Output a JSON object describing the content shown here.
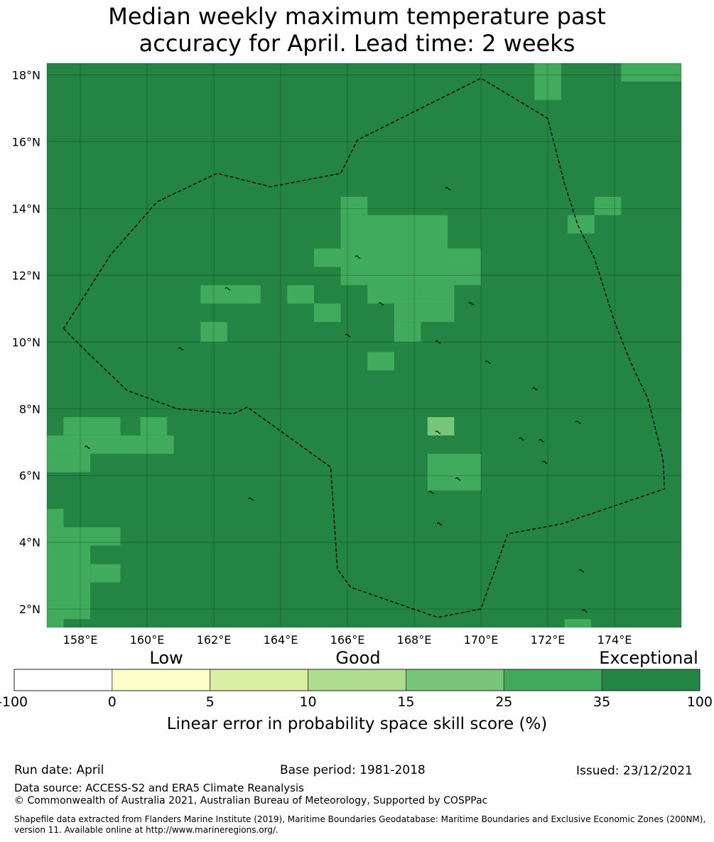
{
  "title_line1": "Median weekly maximum temperature past",
  "title_line2": "accuracy for April. Lead time: 2 weeks",
  "map": {
    "lat_labels": [
      "18°N",
      "16°N",
      "14°N",
      "12°N",
      "10°N",
      "8°N",
      "6°N",
      "4°N",
      "2°N"
    ],
    "lon_labels": [
      "158°E",
      "160°E",
      "162°E",
      "164°E",
      "166°E",
      "168°E",
      "170°E",
      "172°E",
      "174°E"
    ],
    "lat_values": [
      18,
      16,
      14,
      12,
      10,
      8,
      6,
      4,
      2
    ],
    "lon_values": [
      158,
      160,
      162,
      164,
      166,
      168,
      170,
      172,
      174
    ],
    "lon_range": [
      157,
      176
    ],
    "lat_range": [
      1.45,
      18.35
    ],
    "grid_lines": true,
    "colors": {
      "exceptional": "#238443",
      "band_25_35": "#41ab5d",
      "band_15_25": "#78c679",
      "border": "#000000"
    },
    "skill_25_35_cells": [
      {
        "lon": [
          171.6,
          172.4
        ],
        "lat": [
          17.25,
          18.35
        ]
      },
      {
        "lon": [
          174.2,
          176.0
        ],
        "lat": [
          17.8,
          18.35
        ]
      },
      {
        "lon": [
          165.8,
          166.6
        ],
        "lat": [
          13.8,
          14.35
        ]
      },
      {
        "lon": [
          165.8,
          169.0
        ],
        "lat": [
          11.7,
          13.8
        ]
      },
      {
        "lon": [
          165.0,
          165.8
        ],
        "lat": [
          12.25,
          12.8
        ]
      },
      {
        "lon": [
          169.0,
          170.0
        ],
        "lat": [
          12.25,
          12.8
        ]
      },
      {
        "lon": [
          169.0,
          170.0
        ],
        "lat": [
          11.7,
          12.25
        ]
      },
      {
        "lon": [
          166.6,
          168.2
        ],
        "lat": [
          11.15,
          11.7
        ]
      },
      {
        "lon": [
          168.2,
          169.2
        ],
        "lat": [
          11.15,
          11.7
        ]
      },
      {
        "lon": [
          167.4,
          169.2
        ],
        "lat": [
          10.6,
          11.15
        ]
      },
      {
        "lon": [
          167.4,
          168.2
        ],
        "lat": [
          10.0,
          10.6
        ]
      },
      {
        "lon": [
          173.4,
          174.2
        ],
        "lat": [
          13.8,
          14.35
        ]
      },
      {
        "lon": [
          172.6,
          173.4
        ],
        "lat": [
          13.25,
          13.8
        ]
      },
      {
        "lon": [
          161.6,
          163.4
        ],
        "lat": [
          11.15,
          11.7
        ]
      },
      {
        "lon": [
          164.2,
          165.0
        ],
        "lat": [
          11.15,
          11.7
        ]
      },
      {
        "lon": [
          165.0,
          165.8
        ],
        "lat": [
          10.6,
          11.15
        ]
      },
      {
        "lon": [
          161.6,
          162.4
        ],
        "lat": [
          10.0,
          10.6
        ]
      },
      {
        "lon": [
          166.6,
          167.4
        ],
        "lat": [
          9.15,
          9.7
        ]
      },
      {
        "lon": [
          157.5,
          159.2
        ],
        "lat": [
          7.2,
          7.75
        ]
      },
      {
        "lon": [
          157.0,
          160.8
        ],
        "lat": [
          6.65,
          7.2
        ]
      },
      {
        "lon": [
          157.0,
          158.3
        ],
        "lat": [
          6.1,
          6.65
        ]
      },
      {
        "lon": [
          159.8,
          160.6
        ],
        "lat": [
          7.2,
          7.75
        ]
      },
      {
        "lon": [
          168.4,
          170.0
        ],
        "lat": [
          5.55,
          6.65
        ]
      },
      {
        "lon": [
          157.0,
          157.5
        ],
        "lat": [
          4.45,
          5.0
        ]
      },
      {
        "lon": [
          157.0,
          159.2
        ],
        "lat": [
          3.9,
          4.45
        ]
      },
      {
        "lon": [
          157.0,
          158.3
        ],
        "lat": [
          2.25,
          3.9
        ]
      },
      {
        "lon": [
          158.3,
          159.2
        ],
        "lat": [
          2.8,
          3.35
        ]
      },
      {
        "lon": [
          157.0,
          158.3
        ],
        "lat": [
          1.7,
          2.25
        ]
      },
      {
        "lon": [
          157.0,
          157.5
        ],
        "lat": [
          1.45,
          1.7
        ]
      },
      {
        "lon": [
          172.5,
          173.3
        ],
        "lat": [
          1.45,
          1.7
        ]
      }
    ],
    "skill_15_25_cells": [
      {
        "lon": [
          168.4,
          169.2
        ],
        "lat": [
          7.2,
          7.75
        ]
      }
    ],
    "eez_boundary": [
      [
        157.5,
        10.4
      ],
      [
        158.2,
        9.7
      ],
      [
        159.4,
        8.55
      ],
      [
        160.9,
        8.0
      ],
      [
        162.6,
        7.85
      ],
      [
        163.0,
        8.05
      ],
      [
        165.5,
        6.25
      ],
      [
        165.7,
        3.2
      ],
      [
        166.1,
        2.65
      ],
      [
        168.7,
        1.75
      ],
      [
        170.0,
        2.0
      ],
      [
        170.8,
        4.25
      ],
      [
        172.4,
        4.55
      ],
      [
        175.5,
        5.6
      ],
      [
        175.45,
        6.5
      ],
      [
        175.0,
        8.3
      ],
      [
        174.5,
        9.35
      ],
      [
        174.0,
        10.6
      ],
      [
        173.4,
        12.5
      ],
      [
        172.9,
        13.5
      ],
      [
        172.5,
        14.75
      ],
      [
        172.0,
        16.7
      ],
      [
        170.0,
        17.9
      ],
      [
        166.3,
        16.05
      ],
      [
        165.8,
        15.05
      ],
      [
        163.7,
        14.65
      ],
      [
        162.1,
        15.05
      ],
      [
        160.3,
        14.2
      ],
      [
        158.9,
        12.6
      ],
      [
        157.5,
        10.4
      ]
    ],
    "islands": [
      [
        158.2,
        6.85
      ],
      [
        163.1,
        5.3
      ],
      [
        169.3,
        5.9
      ],
      [
        171.2,
        7.1
      ],
      [
        171.8,
        7.05
      ],
      [
        168.7,
        7.3
      ],
      [
        168.5,
        5.5
      ],
      [
        173.0,
        3.15
      ],
      [
        173.1,
        1.95
      ],
      [
        168.75,
        4.55
      ],
      [
        166.3,
        12.55
      ],
      [
        162.4,
        11.6
      ],
      [
        167.0,
        11.15
      ],
      [
        168.7,
        10.0
      ],
      [
        169.7,
        11.15
      ],
      [
        171.9,
        6.4
      ],
      [
        169.0,
        14.6
      ],
      [
        161.0,
        9.8
      ],
      [
        166.0,
        10.2
      ],
      [
        170.2,
        9.4
      ],
      [
        171.6,
        8.6
      ],
      [
        172.9,
        7.6
      ]
    ]
  },
  "colorbar": {
    "category_labels": [
      "Low",
      "Good",
      "Exceptional"
    ],
    "ticks": [
      "-100",
      "0",
      "5",
      "10",
      "15",
      "25",
      "35",
      "100"
    ],
    "bands": [
      {
        "from": "-100",
        "to": "0",
        "color": "#ffffff"
      },
      {
        "from": "0",
        "to": "5",
        "color": "#ffffcc"
      },
      {
        "from": "5",
        "to": "10",
        "color": "#d9f0a3"
      },
      {
        "from": "10",
        "to": "15",
        "color": "#addd8e"
      },
      {
        "from": "15",
        "to": "25",
        "color": "#78c679"
      },
      {
        "from": "25",
        "to": "35",
        "color": "#41ab5d"
      },
      {
        "from": "35",
        "to": "100",
        "color": "#238443"
      }
    ],
    "label": "Linear error in probability space skill score (%)"
  },
  "footer": {
    "run_date": "Run date: April",
    "base_period": "Base period: 1981-2018",
    "issued": "Issued: 23/12/2021",
    "data_source": "Data source: ACCESS-S2 and ERA5 Climate Reanalysis",
    "copyright": "© Commonwealth of Australia 2021, Australian Bureau of Meteorology, Supported by COSPPac",
    "shapefile_line1": "Shapefile data extracted from Flanders Marine Institute (2019), Maritime Boundaries Geodatabase: Maritime Boundaries and Exclusive Economic Zones (200NM),",
    "shapefile_line2": "version 11. Available online at http://www.marineregions.org/."
  }
}
